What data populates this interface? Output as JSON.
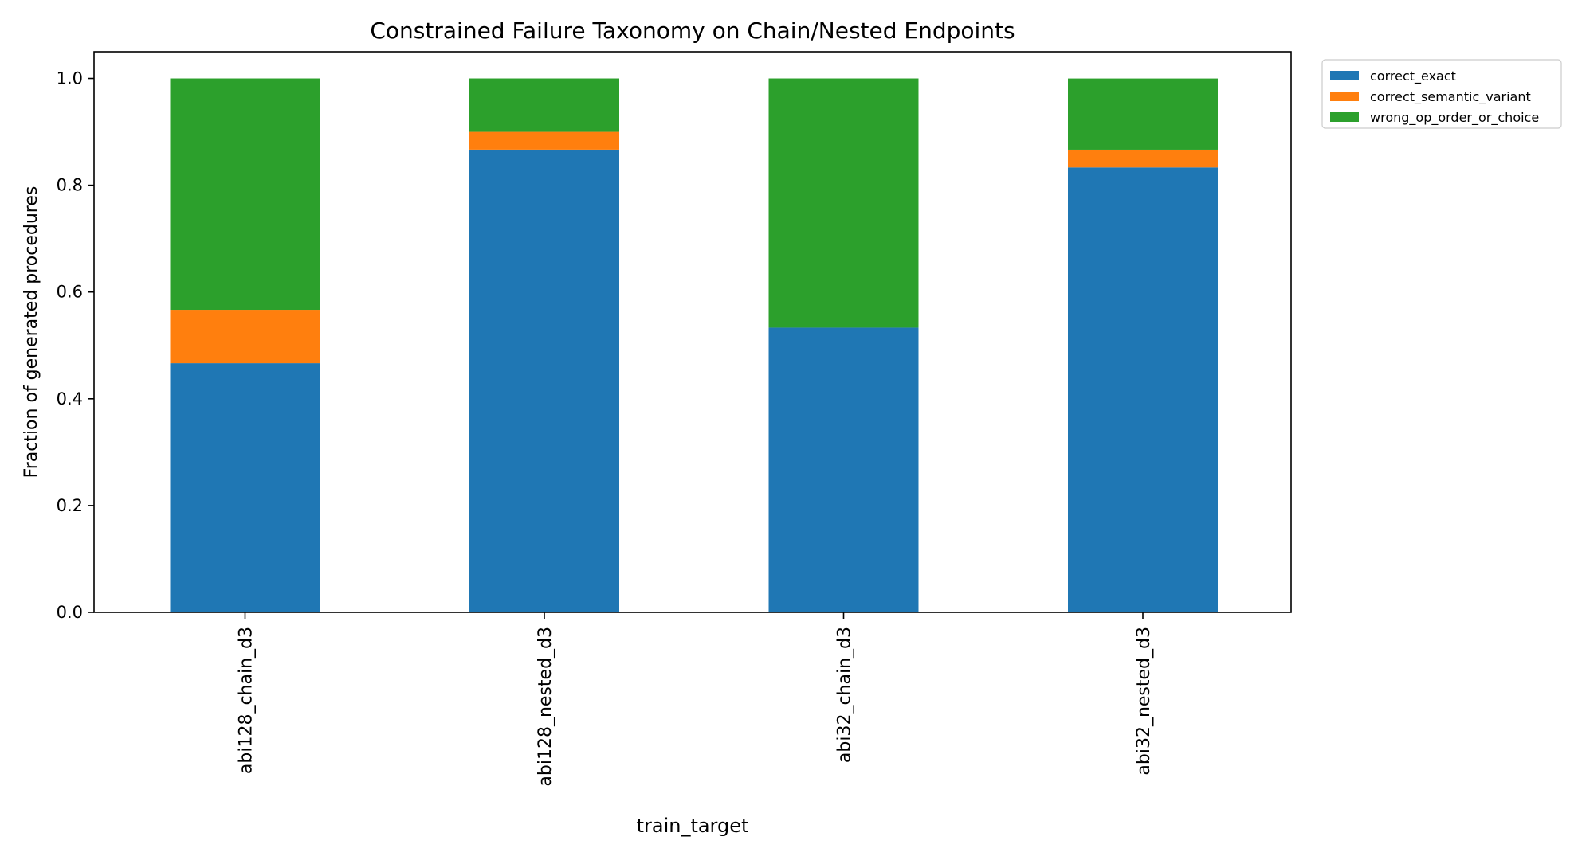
{
  "chart_data": {
    "type": "bar",
    "stacked": true,
    "title": "Constrained Failure Taxonomy on Chain/Nested Endpoints",
    "xlabel": "train_target",
    "ylabel": "Fraction of generated procedures",
    "categories": [
      "abi128_chain_d3",
      "abi128_nested_d3",
      "abi32_chain_d3",
      "abi32_nested_d3"
    ],
    "ylim": [
      0,
      1.05
    ],
    "yticks": [
      "0.0",
      "0.2",
      "0.4",
      "0.6",
      "0.8",
      "1.0"
    ],
    "grid": false,
    "legend_position": "outside top-right",
    "series": [
      {
        "name": "correct_exact",
        "color": "#1f77b4",
        "values": [
          0.4667,
          0.8667,
          0.5333,
          0.8333
        ]
      },
      {
        "name": "correct_semantic_variant",
        "color": "#ff7f0e",
        "values": [
          0.1,
          0.0333,
          0.0,
          0.0333
        ]
      },
      {
        "name": "wrong_op_order_or_choice",
        "color": "#2ca02c",
        "values": [
          0.4333,
          0.1,
          0.4667,
          0.1333
        ]
      }
    ]
  }
}
